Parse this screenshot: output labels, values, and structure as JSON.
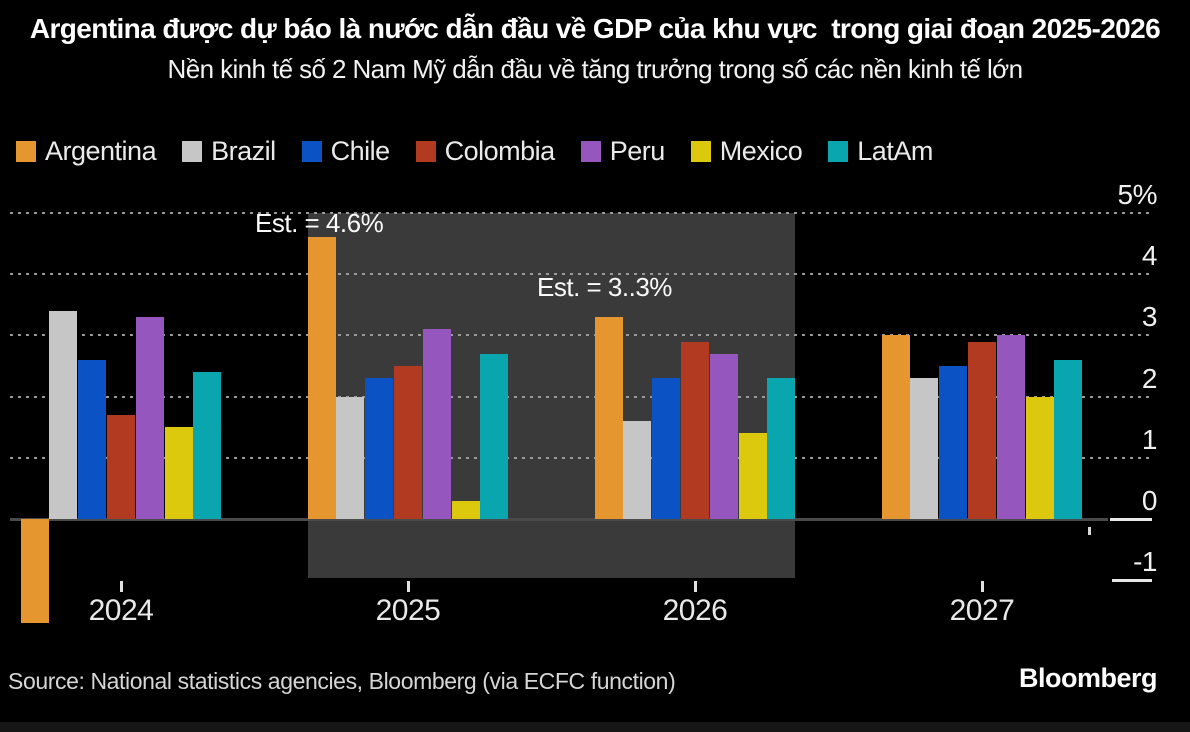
{
  "title": "Argentina được dự báo là nước dẫn đầu về GDP của khu vực  trong giai đoạn 2025-2026",
  "subtitle": "Nền kinh tế số 2 Nam Mỹ dẫn đầu về tăng trưởng trong số các nền kinh tế lớn",
  "source": "Source: National statistics agencies, Bloomberg (via ECFC function)",
  "brand": "Bloomberg",
  "colors": {
    "background": "#000000",
    "highlight_box": "#3a3a3a",
    "gridline": "#9a9a9a",
    "zero_line": "#4a4a4a"
  },
  "chart_data": {
    "type": "bar",
    "categories": [
      "2024",
      "2025",
      "2026",
      "2027"
    ],
    "series": [
      {
        "name": "Argentina",
        "color": "#e5962f",
        "values": [
          -1.7,
          4.6,
          3.3,
          3.0
        ]
      },
      {
        "name": "Brazil",
        "color": "#c6c6c6",
        "values": [
          3.4,
          2.0,
          1.6,
          2.3
        ]
      },
      {
        "name": "Chile",
        "color": "#0b53c4",
        "values": [
          2.6,
          2.3,
          2.3,
          2.5
        ]
      },
      {
        "name": "Colombia",
        "color": "#b23a20",
        "values": [
          1.7,
          2.5,
          2.9,
          2.9
        ]
      },
      {
        "name": "Peru",
        "color": "#9557be",
        "values": [
          3.3,
          3.1,
          2.7,
          3.0
        ]
      },
      {
        "name": "Mexico",
        "color": "#dcc90d",
        "values": [
          1.5,
          0.3,
          1.4,
          2.0
        ]
      },
      {
        "name": "LatAm",
        "color": "#09a6b0",
        "values": [
          2.4,
          2.7,
          2.3,
          2.6
        ]
      }
    ],
    "ylim": [
      -1.7,
      5
    ],
    "yticks": [
      {
        "value": 5,
        "label": "5%"
      },
      {
        "value": 4,
        "label": "4"
      },
      {
        "value": 3,
        "label": "3"
      },
      {
        "value": 2,
        "label": "2"
      },
      {
        "value": 1,
        "label": "1"
      },
      {
        "value": 0,
        "label": "0"
      },
      {
        "value": -1,
        "label": "-1"
      }
    ],
    "grid": "horizontal-dotted",
    "legend_position": "top",
    "highlight_region": {
      "categories": [
        "2025",
        "2026"
      ],
      "note": "estimate period"
    },
    "annotations": [
      {
        "text": "Est. = 4.6%",
        "target": "Argentina 2025"
      },
      {
        "text": "Est. = 3..3%",
        "target": "Argentina 2026"
      }
    ]
  }
}
